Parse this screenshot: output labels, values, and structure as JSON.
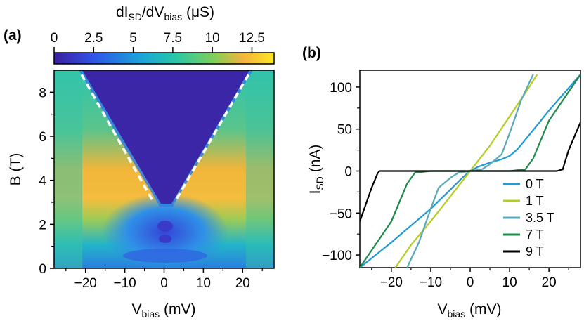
{
  "panel_a": {
    "label": "(a)",
    "colorbar": {
      "label_main": "dI",
      "label_sub1": "SD",
      "label_mid": "/dV",
      "label_sub2": "bias",
      "label_unit": " (μS)",
      "ticks": [
        "0",
        "2.5",
        "5",
        "7.5",
        "10",
        "12.5"
      ],
      "range": [
        0,
        13.9
      ],
      "colors": [
        "#3b1fa0",
        "#2f55e8",
        "#1aa6d8",
        "#28c6a8",
        "#7ccf5c",
        "#f4b43c",
        "#fde725"
      ]
    },
    "ylabel": "B (T)",
    "xlabel_main": "V",
    "xlabel_sub": "bias",
    "xlabel_unit": " (mV)",
    "xticks": [
      "−20",
      "−10",
      "0",
      "10",
      "20"
    ],
    "yticks": [
      "0",
      "2",
      "4",
      "6",
      "8"
    ]
  },
  "panel_b": {
    "label": "(b)",
    "ylabel_main": "I",
    "ylabel_sub": "SD",
    "ylabel_unit": " (nA)",
    "xlabel_main": "V",
    "xlabel_sub": "bias",
    "xlabel_unit": " (mV)",
    "xticks": [
      "−20",
      "−10",
      "0",
      "10",
      "20"
    ],
    "yticks": [
      "−100",
      "−50",
      "0",
      "50",
      "100"
    ],
    "legend": [
      "0 T",
      "1 T",
      "3.5 T",
      "7 T",
      "9 T"
    ]
  },
  "chart_data": [
    {
      "type": "heatmap",
      "title": "",
      "xlabel": "Vbias (mV)",
      "ylabel": "B (T)",
      "colorbar_label": "dISD/dVbias (μS)",
      "xlim": [
        -28,
        28
      ],
      "ylim": [
        0,
        9
      ],
      "zlim": [
        0,
        13.9
      ],
      "gap_edges": {
        "description": "dashed lines",
        "left": {
          "x": [
            -21,
            -3
          ],
          "y": [
            8.8,
            3.1
          ]
        },
        "right": {
          "x": [
            21.5,
            3
          ],
          "y": [
            8.8,
            3.1
          ]
        }
      }
    },
    {
      "type": "line",
      "title": "",
      "xlabel": "Vbias (mV)",
      "ylabel": "ISD (nA)",
      "xlim": [
        -28,
        28
      ],
      "ylim": [
        -115,
        120
      ],
      "series": [
        {
          "name": "0 T",
          "color": "#1f9ad6",
          "x": [
            -28,
            -20,
            -10,
            -5,
            -2,
            0,
            2,
            5,
            8,
            10,
            12,
            15,
            20,
            28
          ],
          "y": [
            -115,
            -85,
            -45,
            -22,
            -8,
            0,
            5,
            10,
            14,
            18,
            26,
            43,
            72,
            115
          ]
        },
        {
          "name": "1 T",
          "color": "#b5cc22",
          "x": [
            -19,
            -15,
            -10,
            -5,
            -2,
            0,
            2,
            5,
            10,
            15,
            17
          ],
          "y": [
            -115,
            -88,
            -60,
            -30,
            -12,
            0,
            12,
            30,
            65,
            100,
            115
          ]
        },
        {
          "name": "3.5 T",
          "color": "#5aa8b8",
          "x": [
            -16,
            -13,
            -10,
            -8,
            -5,
            -3,
            0,
            3,
            5,
            8,
            10,
            13,
            16
          ],
          "y": [
            -115,
            -85,
            -45,
            -20,
            -8,
            -2,
            0,
            2,
            8,
            20,
            45,
            85,
            115
          ]
        },
        {
          "name": "7 T",
          "color": "#1f8a4c",
          "x": [
            -28,
            -20,
            -16,
            -14,
            -10,
            0,
            10,
            14,
            16,
            20,
            28
          ],
          "y": [
            -115,
            -60,
            -15,
            -2,
            0,
            0,
            0,
            2,
            15,
            60,
            115
          ]
        },
        {
          "name": "9 T",
          "color": "#000000",
          "x": [
            -28,
            -25,
            -23.5,
            -23,
            -20,
            0,
            22,
            23.5,
            24,
            25,
            28
          ],
          "y": [
            -60,
            -20,
            -3,
            0,
            0,
            0,
            0,
            2,
            10,
            25,
            58
          ]
        }
      ]
    }
  ]
}
